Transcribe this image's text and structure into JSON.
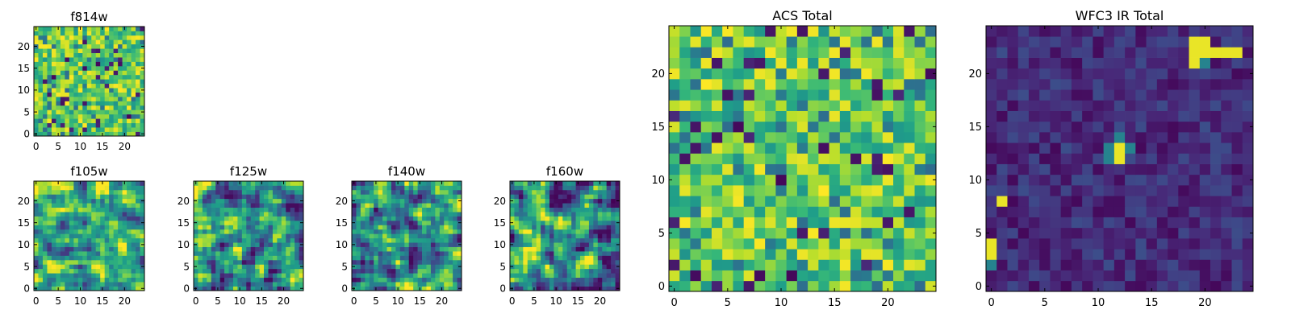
{
  "chart_data": [
    {
      "type": "heatmap",
      "title": "f814w",
      "colormap": "viridis",
      "xlim": [
        0,
        25
      ],
      "ylim": [
        0,
        25
      ],
      "xticks": [
        0,
        5,
        10,
        15,
        20
      ],
      "yticks": [
        0,
        5,
        10,
        15,
        20
      ],
      "xticklabels": [
        "0",
        "5",
        "10",
        "15",
        "20"
      ],
      "yticklabels": [
        "0",
        "5",
        "10",
        "15",
        "20"
      ],
      "grid_size": [
        25,
        25
      ],
      "seed": 11,
      "pattern": "noise_bright",
      "grid": false
    },
    {
      "type": "heatmap",
      "title": "f105w",
      "colormap": "viridis",
      "xlim": [
        0,
        25
      ],
      "ylim": [
        0,
        25
      ],
      "xticks": [
        0,
        5,
        10,
        15,
        20
      ],
      "yticks": [
        0,
        5,
        10,
        15,
        20
      ],
      "xticklabels": [
        "0",
        "5",
        "10",
        "15",
        "20"
      ],
      "yticklabels": [
        "0",
        "5",
        "10",
        "15",
        "20"
      ],
      "grid_size": [
        25,
        25
      ],
      "seed": 23,
      "pattern": "smooth_bright",
      "grid": false
    },
    {
      "type": "heatmap",
      "title": "f125w",
      "colormap": "viridis",
      "xlim": [
        0,
        25
      ],
      "ylim": [
        0,
        25
      ],
      "xticks": [
        0,
        5,
        10,
        15,
        20
      ],
      "yticks": [
        0,
        5,
        10,
        15,
        20
      ],
      "xticklabels": [
        "0",
        "5",
        "10",
        "15",
        "20"
      ],
      "yticklabels": [
        "0",
        "5",
        "10",
        "15",
        "20"
      ],
      "grid_size": [
        25,
        25
      ],
      "seed": 37,
      "pattern": "smooth_mixed",
      "grid": false
    },
    {
      "type": "heatmap",
      "title": "f140w",
      "colormap": "viridis",
      "xlim": [
        0,
        25
      ],
      "ylim": [
        0,
        25
      ],
      "xticks": [
        0,
        5,
        10,
        15,
        20
      ],
      "yticks": [
        0,
        5,
        10,
        15,
        20
      ],
      "xticklabels": [
        "0",
        "5",
        "10",
        "15",
        "20"
      ],
      "yticklabels": [
        "0",
        "5",
        "10",
        "15",
        "20"
      ],
      "grid_size": [
        25,
        25
      ],
      "seed": 41,
      "pattern": "smooth_mixed",
      "grid": false
    },
    {
      "type": "heatmap",
      "title": "f160w",
      "colormap": "viridis",
      "xlim": [
        0,
        25
      ],
      "ylim": [
        0,
        25
      ],
      "xticks": [
        0,
        5,
        10,
        15,
        20
      ],
      "yticks": [
        0,
        5,
        10,
        15,
        20
      ],
      "xticklabels": [
        "0",
        "5",
        "10",
        "15",
        "20"
      ],
      "yticklabels": [
        "0",
        "5",
        "10",
        "15",
        "20"
      ],
      "grid_size": [
        25,
        25
      ],
      "seed": 53,
      "pattern": "smooth_mixed",
      "grid": false
    },
    {
      "type": "heatmap",
      "title": "ACS Total",
      "colormap": "viridis",
      "xlim": [
        0,
        25
      ],
      "ylim": [
        0,
        25
      ],
      "xticks": [
        0,
        5,
        10,
        15,
        20
      ],
      "yticks": [
        0,
        5,
        10,
        15,
        20
      ],
      "xticklabels": [
        "0",
        "5",
        "10",
        "15",
        "20"
      ],
      "yticklabels": [
        "0",
        "5",
        "10",
        "15",
        "20"
      ],
      "grid_size": [
        25,
        25
      ],
      "seed": 67,
      "pattern": "noise_bright",
      "grid": false
    },
    {
      "type": "heatmap",
      "title": "WFC3 IR Total",
      "colormap": "viridis",
      "xlim": [
        0,
        25
      ],
      "ylim": [
        0,
        25
      ],
      "xticks": [
        0,
        5,
        10,
        15,
        20
      ],
      "yticks": [
        0,
        5,
        10,
        15,
        20
      ],
      "xticklabels": [
        "0",
        "5",
        "10",
        "15",
        "20"
      ],
      "yticklabels": [
        "0",
        "5",
        "10",
        "15",
        "20"
      ],
      "grid_size": [
        25,
        25
      ],
      "seed": 79,
      "pattern": "dark_sources",
      "grid": false,
      "bright_pixels": [
        [
          19,
          23
        ],
        [
          20,
          23
        ],
        [
          19,
          22
        ],
        [
          20,
          22
        ],
        [
          21,
          22
        ],
        [
          22,
          22
        ],
        [
          23,
          22
        ],
        [
          19,
          21
        ],
        [
          12,
          13
        ],
        [
          12,
          12
        ],
        [
          1,
          8
        ],
        [
          0,
          3
        ],
        [
          0,
          4
        ]
      ],
      "mid_pixels": [
        [
          11,
          12
        ],
        [
          11,
          13
        ],
        [
          13,
          13
        ],
        [
          12,
          14
        ],
        [
          0,
          2
        ],
        [
          20,
          21
        ]
      ]
    }
  ]
}
